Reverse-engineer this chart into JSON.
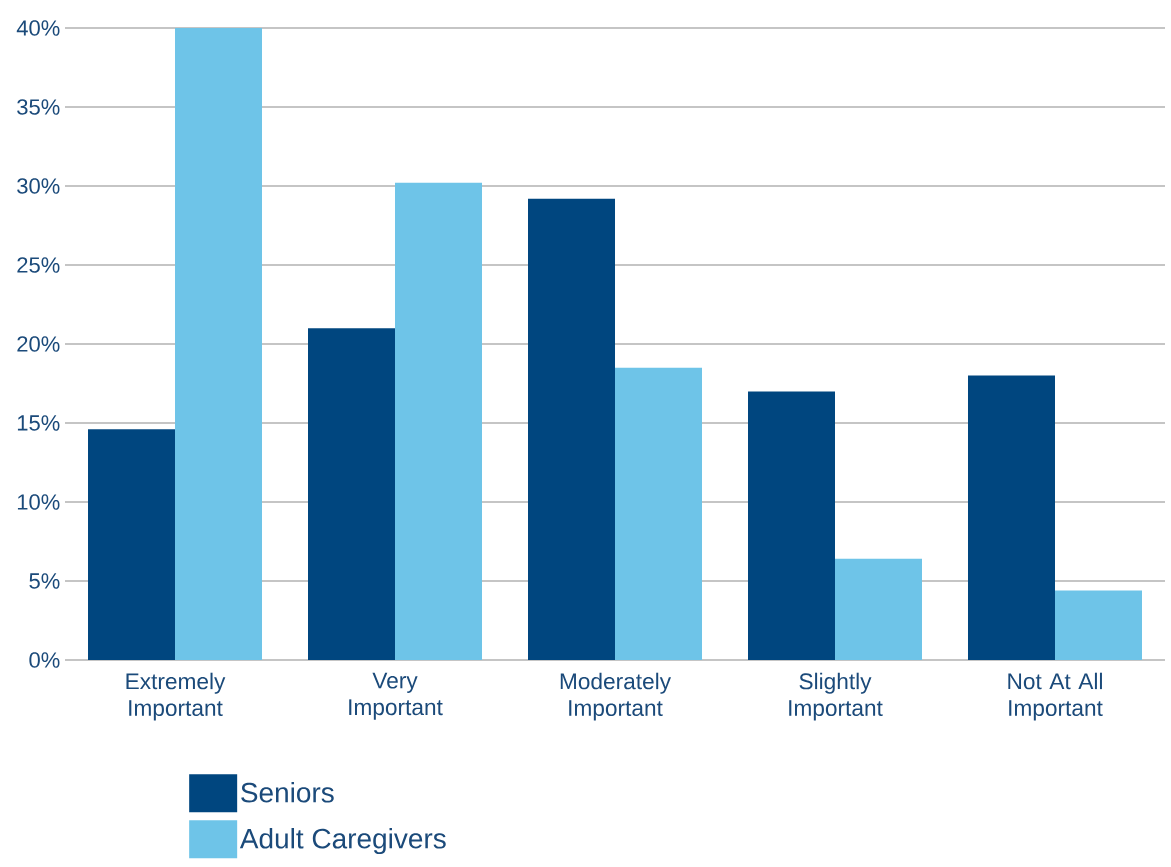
{
  "chart_data": {
    "type": "bar",
    "categories": [
      "Extremely Important",
      "Very Important",
      "Moderately Important",
      "Slightly Important",
      "Not At All Important"
    ],
    "series": [
      {
        "name": "Seniors",
        "color": "#00467f",
        "values": [
          14.6,
          21.0,
          29.2,
          17.0,
          18.0
        ]
      },
      {
        "name": "Adult Caregivers",
        "color": "#6ec4e8",
        "values": [
          40,
          30.2,
          18.5,
          6.4,
          4.4
        ]
      }
    ],
    "ylim": [
      0,
      40
    ],
    "yticks": [
      {
        "value": 0,
        "label": "0%"
      },
      {
        "value": 5,
        "label": "5%"
      },
      {
        "value": 10,
        "label": "10%"
      },
      {
        "value": 15,
        "label": "15%"
      },
      {
        "value": 20,
        "label": "20%"
      },
      {
        "value": 25,
        "label": "25%"
      },
      {
        "value": 30,
        "label": "30%"
      },
      {
        "value": 35,
        "label": "35%"
      },
      {
        "value": 40,
        "label": "40%"
      }
    ],
    "grid": "y",
    "legend": "bottom"
  }
}
